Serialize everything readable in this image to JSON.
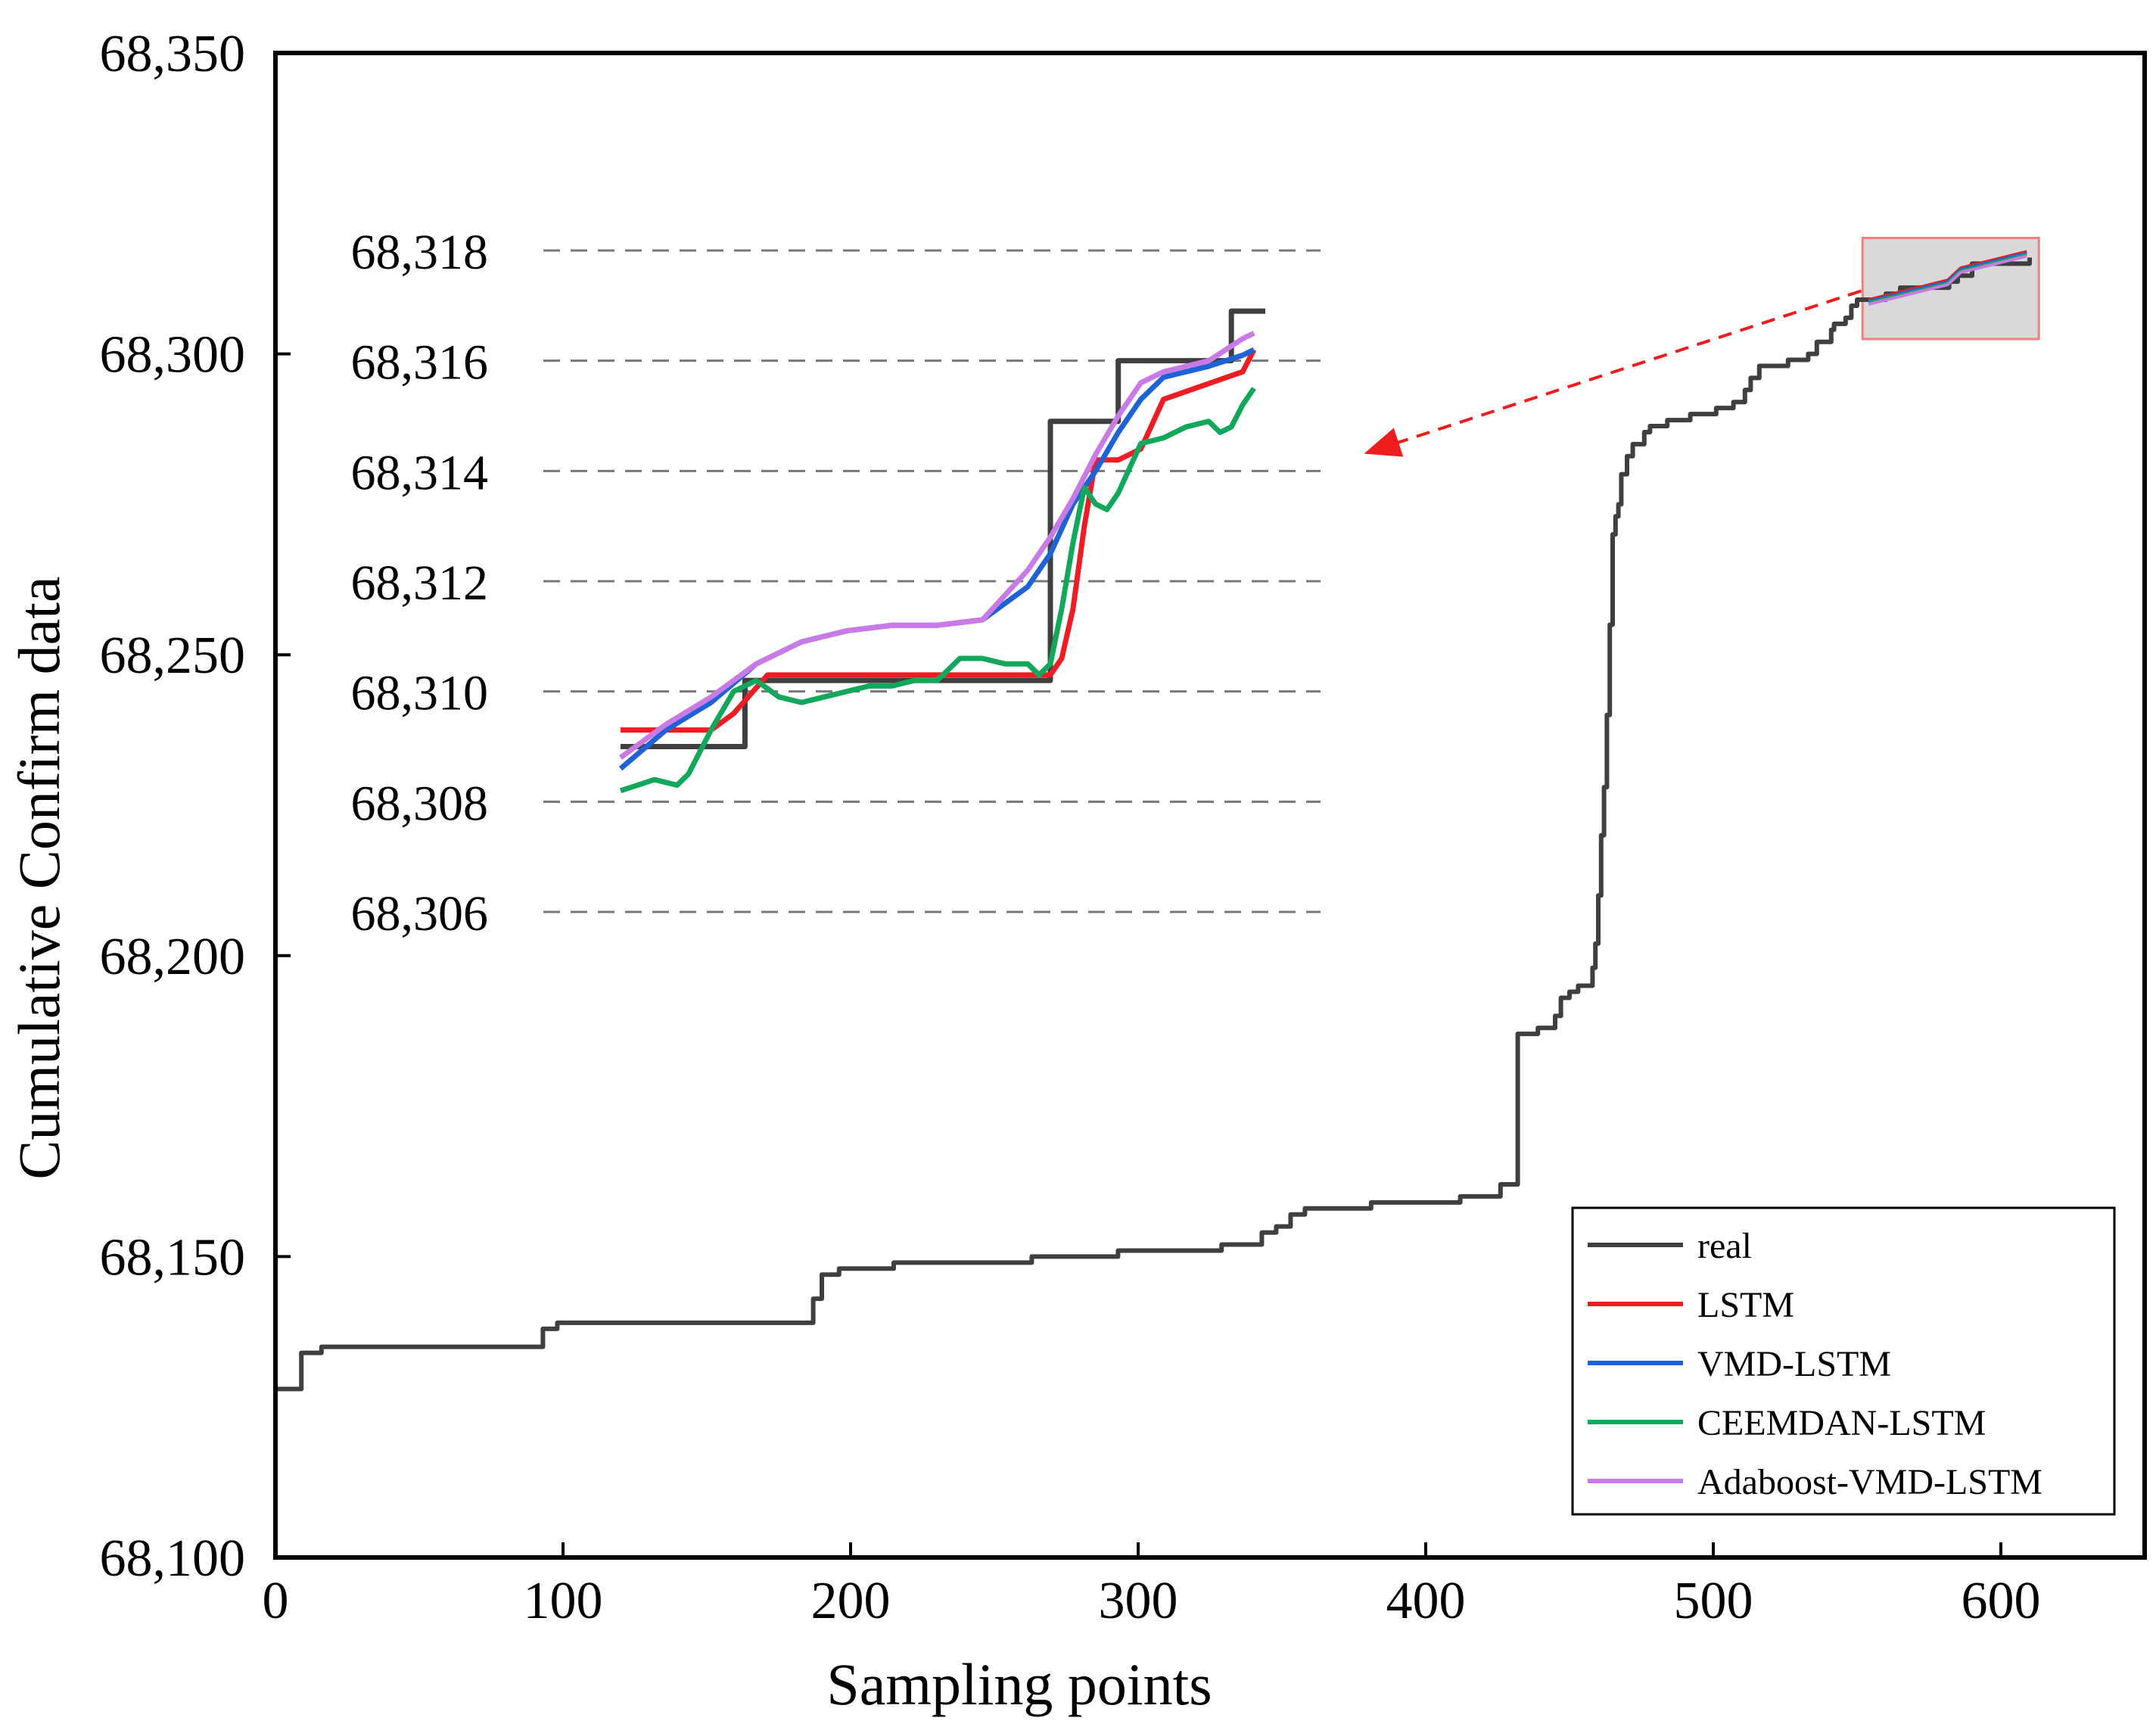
{
  "chart_data": {
    "type": "line",
    "title": "",
    "xlabel": "Sampling points",
    "ylabel": "Cumulative Confirm data",
    "xlim": [
      0,
      650
    ],
    "ylim": [
      68100,
      68350
    ],
    "xticks": [
      0,
      100,
      200,
      300,
      400,
      500,
      600
    ],
    "yticks": [
      68100,
      68150,
      68200,
      68250,
      68300,
      68350
    ],
    "xtick_labels": [
      "0",
      "100",
      "200",
      "300",
      "400",
      "500",
      "600"
    ],
    "ytick_labels": [
      "68,100",
      "68,150",
      "68,200",
      "68,250",
      "68,300",
      "68,350"
    ],
    "grid": false,
    "legend_position": "bottom-right",
    "series": [
      {
        "name": "real",
        "color": "#3f3f3f",
        "points": [
          [
            0,
            68128
          ],
          [
            8,
            68128
          ],
          [
            9,
            68134
          ],
          [
            16,
            68135
          ],
          [
            92,
            68135
          ],
          [
            93,
            68138
          ],
          [
            98,
            68139
          ],
          [
            185,
            68139
          ],
          [
            187,
            68143
          ],
          [
            190,
            68147
          ],
          [
            196,
            68148
          ],
          [
            215,
            68149
          ],
          [
            262,
            68149
          ],
          [
            263,
            68150
          ],
          [
            292,
            68150
          ],
          [
            293,
            68151
          ],
          [
            328,
            68151
          ],
          [
            329,
            68152
          ],
          [
            340,
            68152
          ],
          [
            343,
            68154
          ],
          [
            348,
            68155
          ],
          [
            353,
            68157
          ],
          [
            358,
            68158
          ],
          [
            380,
            68158
          ],
          [
            381,
            68159
          ],
          [
            409,
            68159
          ],
          [
            412,
            68160
          ],
          [
            425,
            68160
          ],
          [
            426,
            68162
          ],
          [
            431,
            68162
          ],
          [
            432,
            68187
          ],
          [
            438,
            68187
          ],
          [
            439,
            68188
          ],
          [
            443,
            68188
          ],
          [
            445,
            68190
          ],
          [
            447,
            68193
          ],
          [
            450,
            68194
          ],
          [
            453,
            68195
          ],
          [
            456,
            68195
          ],
          [
            458,
            68198
          ],
          [
            459,
            68202
          ],
          [
            460,
            68210
          ],
          [
            461,
            68220
          ],
          [
            462,
            68228
          ],
          [
            463,
            68240
          ],
          [
            464,
            68255
          ],
          [
            465,
            68270
          ],
          [
            466,
            68273
          ],
          [
            467,
            68275
          ],
          [
            468,
            68280
          ],
          [
            470,
            68283
          ],
          [
            472,
            68285
          ],
          [
            476,
            68287
          ],
          [
            478,
            68288
          ],
          [
            484,
            68289
          ],
          [
            492,
            68290
          ],
          [
            501,
            68291
          ],
          [
            507,
            68292
          ],
          [
            511,
            68294
          ],
          [
            513,
            68296
          ],
          [
            516,
            68298
          ],
          [
            524,
            68298
          ],
          [
            526,
            68299
          ],
          [
            531,
            68299
          ],
          [
            533,
            68300
          ],
          [
            536,
            68302
          ],
          [
            541,
            68304
          ],
          [
            542,
            68305
          ],
          [
            546,
            68306
          ],
          [
            548,
            68308
          ],
          [
            550,
            68309
          ],
          [
            560,
            68310
          ],
          [
            565,
            68311
          ],
          [
            582,
            68312
          ],
          [
            585,
            68313
          ],
          [
            590,
            68315
          ],
          [
            610,
            68316
          ]
        ]
      },
      {
        "name": "LSTM",
        "color": "#ef1c23"
      },
      {
        "name": "VMD-LSTM",
        "color": "#1e63d6"
      },
      {
        "name": "CEEMDAN-LSTM",
        "color": "#12a85b"
      },
      {
        "name": "Adaboost-VMD-LSTM",
        "color": "#c97ae6"
      }
    ],
    "zoom_region": {
      "x_range": [
        554,
        609
      ],
      "y_range": [
        68308,
        68318
      ]
    },
    "inset": {
      "yticks": [
        68306,
        68308,
        68310,
        68312,
        68314,
        68316,
        68318
      ],
      "ytick_labels": [
        "68,306",
        "68,308",
        "68,310",
        "68,312",
        "68,314",
        "68,316",
        "68,318"
      ],
      "x_range": [
        0,
        55
      ],
      "series": [
        {
          "name": "real",
          "color": "#3f3f3f",
          "points": [
            [
              0,
              68309.0
            ],
            [
              11,
              68309.0
            ],
            [
              11,
              68310.2
            ],
            [
              38,
              68310.2
            ],
            [
              38,
              68314.9
            ],
            [
              44,
              68314.9
            ],
            [
              44,
              68316.0
            ],
            [
              54,
              68316.0
            ],
            [
              54,
              68316.9
            ],
            [
              57,
              68316.9
            ]
          ]
        },
        {
          "name": "LSTM",
          "color": "#ef1c23",
          "points": [
            [
              0,
              68309.3
            ],
            [
              8,
              68309.3
            ],
            [
              10,
              68309.6
            ],
            [
              13,
              68310.3
            ],
            [
              38,
              68310.3
            ],
            [
              39,
              68310.6
            ],
            [
              40,
              68311.5
            ],
            [
              41,
              68313.0
            ],
            [
              42,
              68314.2
            ],
            [
              44,
              68314.2
            ],
            [
              46,
              68314.4
            ],
            [
              48,
              68315.3
            ],
            [
              55,
              68315.8
            ],
            [
              56,
              68316.2
            ]
          ]
        },
        {
          "name": "VMD-LSTM",
          "color": "#1e63d6",
          "points": [
            [
              0,
              68308.6
            ],
            [
              4,
              68309.3
            ],
            [
              8,
              68309.8
            ],
            [
              12,
              68310.5
            ],
            [
              16,
              68310.9
            ],
            [
              20,
              68311.1
            ],
            [
              24,
              68311.2
            ],
            [
              28,
              68311.2
            ],
            [
              32,
              68311.3
            ],
            [
              36,
              68311.9
            ],
            [
              38,
              68312.5
            ],
            [
              40,
              68313.4
            ],
            [
              42,
              68314.0
            ],
            [
              44,
              68314.7
            ],
            [
              46,
              68315.3
            ],
            [
              48,
              68315.7
            ],
            [
              52,
              68315.9
            ],
            [
              55,
              68316.1
            ],
            [
              56,
              68316.2
            ]
          ]
        },
        {
          "name": "CEEMDAN-LSTM",
          "color": "#12a85b",
          "points": [
            [
              0,
              68308.2
            ],
            [
              3,
              68308.4
            ],
            [
              5,
              68308.3
            ],
            [
              6,
              68308.5
            ],
            [
              8,
              68309.3
            ],
            [
              10,
              68310.0
            ],
            [
              12,
              68310.2
            ],
            [
              14,
              68309.9
            ],
            [
              16,
              68309.8
            ],
            [
              18,
              68309.9
            ],
            [
              20,
              68310.0
            ],
            [
              22,
              68310.1
            ],
            [
              24,
              68310.1
            ],
            [
              26,
              68310.2
            ],
            [
              28,
              68310.2
            ],
            [
              30,
              68310.6
            ],
            [
              32,
              68310.6
            ],
            [
              34,
              68310.5
            ],
            [
              36,
              68310.5
            ],
            [
              37,
              68310.3
            ],
            [
              38,
              68310.5
            ],
            [
              39,
              68311.5
            ],
            [
              40,
              68312.7
            ],
            [
              41,
              68313.7
            ],
            [
              42,
              68313.4
            ],
            [
              43,
              68313.3
            ],
            [
              44,
              68313.6
            ],
            [
              46,
              68314.5
            ],
            [
              48,
              68314.6
            ],
            [
              50,
              68314.8
            ],
            [
              52,
              68314.9
            ],
            [
              53,
              68314.7
            ],
            [
              54,
              68314.8
            ],
            [
              55,
              68315.2
            ],
            [
              56,
              68315.5
            ]
          ]
        },
        {
          "name": "Adaboost-VMD-LSTM",
          "color": "#c97ae6",
          "points": [
            [
              0,
              68308.8
            ],
            [
              4,
              68309.4
            ],
            [
              8,
              68309.9
            ],
            [
              12,
              68310.5
            ],
            [
              16,
              68310.9
            ],
            [
              20,
              68311.1
            ],
            [
              24,
              68311.2
            ],
            [
              28,
              68311.2
            ],
            [
              32,
              68311.3
            ],
            [
              36,
              68312.2
            ],
            [
              38,
              68312.8
            ],
            [
              40,
              68313.5
            ],
            [
              42,
              68314.3
            ],
            [
              44,
              68315.0
            ],
            [
              46,
              68315.6
            ],
            [
              48,
              68315.8
            ],
            [
              52,
              68316.0
            ],
            [
              55,
              68316.4
            ],
            [
              56,
              68316.5
            ]
          ]
        }
      ]
    }
  }
}
